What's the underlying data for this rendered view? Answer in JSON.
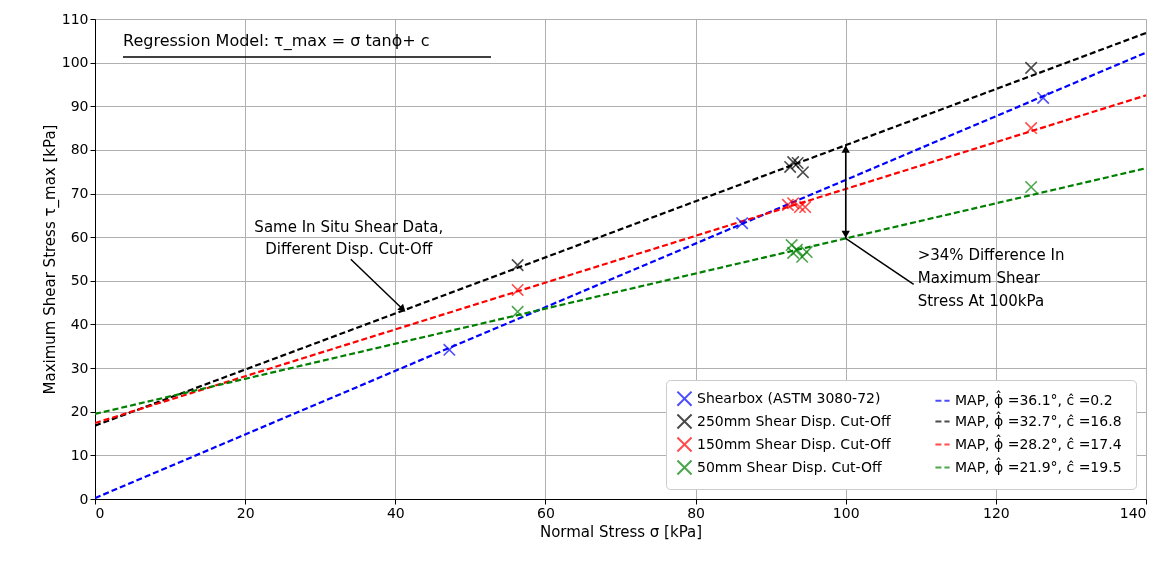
{
  "chart_data": {
    "type": "scatter",
    "title": "Regression Model: τ_max = σ tanϕ+ c",
    "xlabel": "Normal Stress σ [kPa]",
    "ylabel": "Maximum Shear Stress τ_max [kPa]",
    "series": [
      {
        "name": "Shearbox (ASTM 3080-72)",
        "color": "#0000ff",
        "marker": "cross",
        "x": [
          47.2,
          86.2,
          126.3
        ],
        "values": [
          34.2,
          63.2,
          91.9
        ]
      },
      {
        "name": "MAP, ϕ̂ =36.1°, ĉ  =0.2",
        "color": "#0000ff",
        "type": "line",
        "line_style": "dashed",
        "x": [
          0,
          140
        ],
        "values": [
          0.2,
          102.3
        ]
      },
      {
        "name": "250mm Shear Disp. Cut-Off",
        "color": "#000000",
        "marker": "cross",
        "x": [
          56.3,
          92.6,
          93.0,
          93.6,
          94.3,
          124.7
        ],
        "values": [
          53.6,
          76.1,
          77.2,
          77.0,
          74.9,
          98.8
        ]
      },
      {
        "name": "MAP, ϕ̂ =32.7°, ĉ  =16.8",
        "color": "#000000",
        "type": "line",
        "line_style": "dashed",
        "x": [
          0,
          140
        ],
        "values": [
          16.8,
          106.8
        ]
      },
      {
        "name": "150mm Shear Disp. Cut-Off",
        "color": "#ff0000",
        "marker": "cross",
        "x": [
          56.3,
          92.3,
          93.0,
          93.9,
          94.6,
          124.7
        ],
        "values": [
          47.9,
          67.4,
          67.8,
          66.9,
          66.9,
          85.0
        ]
      },
      {
        "name": "MAP, ϕ̂ =28.2°, ĉ  =17.4",
        "color": "#ff0000",
        "type": "line",
        "line_style": "dashed",
        "x": [
          0,
          140
        ],
        "values": [
          17.4,
          92.5
        ]
      },
      {
        "name": "50mm Shear Disp. Cut-Off",
        "color": "#008000",
        "marker": "cross",
        "x": [
          56.3,
          92.8,
          93.0,
          93.5,
          94.2,
          94.8,
          124.7
        ],
        "values": [
          42.9,
          58.2,
          56.4,
          57.1,
          55.5,
          56.6,
          71.5
        ]
      },
      {
        "name": "MAP, ϕ̂ =21.9°, ĉ  =19.5",
        "color": "#008000",
        "type": "line",
        "line_style": "dashed",
        "x": [
          0,
          140
        ],
        "values": [
          19.5,
          75.8
        ]
      }
    ],
    "annotations": [
      {
        "text": "Same In Situ Shear Data,\nDifferent Disp. Cut-Off",
        "x": 41,
        "y": 43.5
      },
      {
        "text": ">34% Difference In\nMaximum Shear\nStress At 100kPa",
        "x": 100,
        "y": 59.7
      }
    ],
    "xlim": [
      0,
      140
    ],
    "ylim": [
      0,
      110
    ],
    "xticks": [
      0,
      20,
      40,
      60,
      80,
      100,
      120,
      140
    ],
    "yticks": [
      0,
      10,
      20,
      30,
      40,
      50,
      60,
      70,
      80,
      90,
      100,
      110
    ],
    "grid": true,
    "legend": "bottom right"
  }
}
